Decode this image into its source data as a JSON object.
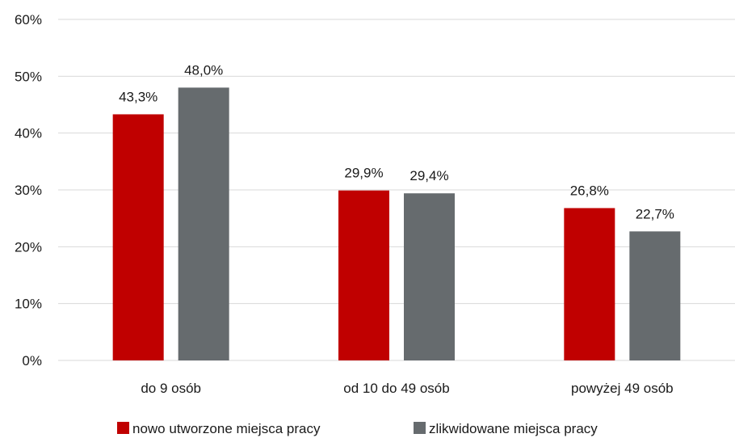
{
  "chart_data": {
    "type": "bar",
    "categories": [
      "do 9 osób",
      "od 10 do 49 osób",
      "powyżej 49 osób"
    ],
    "series": [
      {
        "name": "nowo utworzone miejsca pracy",
        "values": [
          43.3,
          29.9,
          26.8
        ],
        "labels": [
          "43,3%",
          "29,9%",
          "26,8%"
        ],
        "color": "#c00000"
      },
      {
        "name": "zlikwidowane miejsca pracy",
        "values": [
          48.0,
          29.4,
          22.7
        ],
        "labels": [
          "48,0%",
          "29,4%",
          "22,7%"
        ],
        "color": "#666b6e"
      }
    ],
    "y_ticks": [
      0,
      10,
      20,
      30,
      40,
      50,
      60
    ],
    "y_tick_labels": [
      "0%",
      "10%",
      "20%",
      "30%",
      "40%",
      "50%",
      "60%"
    ],
    "ylim": [
      0,
      60
    ],
    "grid": true,
    "legend_position": "bottom",
    "gridline_color": "#d9d9d9"
  }
}
